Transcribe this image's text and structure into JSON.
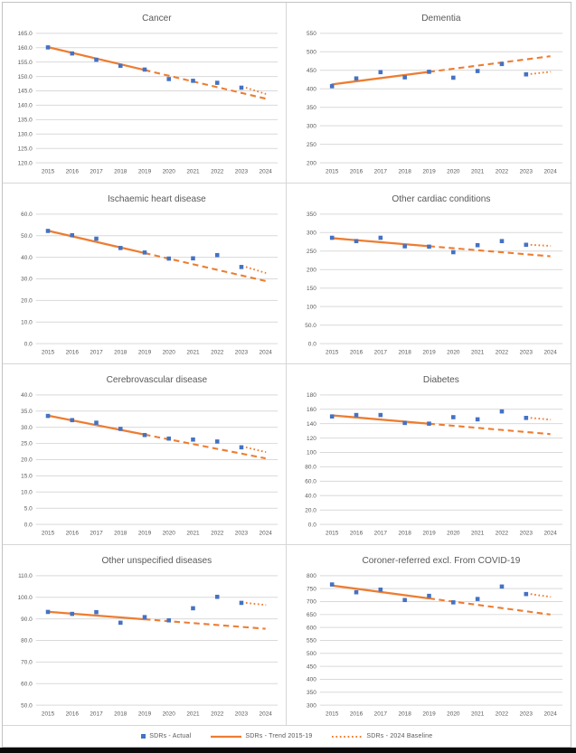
{
  "window": {
    "description": "Excel-style report sheet with eight small-multiple mortality charts (SDRs by year) and a shared legend",
    "background": "#FFFFFF",
    "bottom_bar_color": "#0A0A0A"
  },
  "colors": {
    "series_blue": "#4472C4",
    "trend_orange": "#ED7D31",
    "gridline": "#D9D9D9",
    "axis_text": "#595959",
    "title_text": "#595959",
    "panel_divider": "#D6D6D6",
    "frame_border": "#C3C3C3"
  },
  "legend": {
    "items": [
      {
        "label": "SDRs - Actual",
        "marker": "square",
        "color": "#4472C4"
      },
      {
        "label": "SDRs - Trend 2015-19",
        "marker": "solid-line",
        "color": "#ED7D31"
      },
      {
        "label": "SDRs - 2024 Baseline",
        "marker": "dotted-line",
        "color": "#ED7D31"
      }
    ]
  },
  "chart_data": [
    {
      "id": "cancer",
      "type": "scatter",
      "title": "Cancer",
      "categories": [
        "2015",
        "2016",
        "2017",
        "2018",
        "2019",
        "2020",
        "2021",
        "2022",
        "2023",
        "2024"
      ],
      "series": [
        {
          "name": "SDRs - Actual",
          "values": [
            160.1,
            158.0,
            155.8,
            153.7,
            152.4,
            149.1,
            148.5,
            147.8,
            146.1
          ]
        }
      ],
      "trend": {
        "name": "SDRs - Trend 2015-19",
        "y_2015": 160.2,
        "y_2024": 142.3,
        "solid_until_year": "2019"
      },
      "baseline_2024": {
        "name": "SDRs - 2024 Baseline",
        "y_2023": 146.1,
        "y_2024": 143.9
      },
      "ylim": [
        120,
        165
      ],
      "yticks": [
        "165.0",
        "160.0",
        "155.0",
        "150.0",
        "145.0",
        "140.0",
        "135.0",
        "130.0",
        "125.0",
        "120.0"
      ],
      "grid": true,
      "legend_position": "none"
    },
    {
      "id": "dementia",
      "type": "scatter",
      "title": "Dementia",
      "categories": [
        "2015",
        "2016",
        "2017",
        "2018",
        "2019",
        "2020",
        "2021",
        "2022",
        "2023",
        "2024"
      ],
      "series": [
        {
          "name": "SDRs - Actual",
          "values": [
            407,
            428,
            445,
            431,
            446,
            430,
            448,
            467,
            439
          ]
        }
      ],
      "trend": {
        "name": "SDRs - Trend 2015-19",
        "y_2015": 412,
        "y_2024": 488,
        "solid_until_year": "2019"
      },
      "baseline_2024": {
        "name": "SDRs - 2024 Baseline",
        "y_2023": 440,
        "y_2024": 446
      },
      "ylim": [
        200,
        550
      ],
      "yticks": [
        "550",
        "500",
        "450",
        "400",
        "350",
        "300",
        "250",
        "200"
      ],
      "grid": true,
      "legend_position": "none"
    },
    {
      "id": "ischaemic-heart-disease",
      "type": "scatter",
      "title": "Ischaemic heart disease",
      "categories": [
        "2015",
        "2016",
        "2017",
        "2018",
        "2019",
        "2020",
        "2021",
        "2022",
        "2023",
        "2024"
      ],
      "series": [
        {
          "name": "SDRs - Actual",
          "values": [
            52.2,
            50.2,
            48.6,
            44.3,
            42.2,
            39.4,
            39.5,
            41.0,
            35.5
          ]
        }
      ],
      "trend": {
        "name": "SDRs - Trend 2015-19",
        "y_2015": 52.3,
        "y_2024": 29.0,
        "solid_until_year": "2019"
      },
      "baseline_2024": {
        "name": "SDRs - 2024 Baseline",
        "y_2023": 35.5,
        "y_2024": 32.7
      },
      "ylim": [
        0,
        60
      ],
      "yticks": [
        "60.0",
        "50.0",
        "40.0",
        "30.0",
        "20.0",
        "10.0",
        "0.0"
      ],
      "grid": true,
      "legend_position": "none"
    },
    {
      "id": "other-cardiac-conditions",
      "type": "scatter",
      "title": "Other cardiac conditions",
      "categories": [
        "2015",
        "2016",
        "2017",
        "2018",
        "2019",
        "2020",
        "2021",
        "2022",
        "2023",
        "2024"
      ],
      "series": [
        {
          "name": "SDRs - Actual",
          "values": [
            286,
            277,
            286,
            263,
            262,
            247,
            266,
            277,
            267
          ]
        }
      ],
      "trend": {
        "name": "SDRs - Trend 2015-19",
        "y_2015": 285,
        "y_2024": 236,
        "solid_until_year": "2019"
      },
      "baseline_2024": {
        "name": "SDRs - 2024 Baseline",
        "y_2023": 267,
        "y_2024": 264
      },
      "ylim": [
        0,
        350
      ],
      "yticks": [
        "350",
        "300",
        "250",
        "200",
        "150",
        "100",
        "50.0",
        "0.0"
      ],
      "grid": true,
      "legend_position": "none"
    },
    {
      "id": "cerebrovascular-disease",
      "type": "scatter",
      "title": "Cerebrovascular disease",
      "categories": [
        "2015",
        "2016",
        "2017",
        "2018",
        "2019",
        "2020",
        "2021",
        "2022",
        "2023",
        "2024"
      ],
      "series": [
        {
          "name": "SDRs - Actual",
          "values": [
            33.5,
            32.2,
            31.4,
            29.5,
            27.6,
            26.5,
            26.2,
            25.6,
            23.8
          ]
        }
      ],
      "trend": {
        "name": "SDRs - Trend 2015-19",
        "y_2015": 33.6,
        "y_2024": 20.4,
        "solid_until_year": "2019"
      },
      "baseline_2024": {
        "name": "SDRs - 2024 Baseline",
        "y_2023": 23.8,
        "y_2024": 22.3
      },
      "ylim": [
        0,
        40
      ],
      "yticks": [
        "40.0",
        "35.0",
        "30.0",
        "25.0",
        "20.0",
        "15.0",
        "10.0",
        "5.0",
        "0.0"
      ],
      "grid": true,
      "legend_position": "none"
    },
    {
      "id": "diabetes",
      "type": "scatter",
      "title": "Diabetes",
      "categories": [
        "2015",
        "2016",
        "2017",
        "2018",
        "2019",
        "2020",
        "2021",
        "2022",
        "2023",
        "2024"
      ],
      "series": [
        {
          "name": "SDRs - Actual",
          "values": [
            150,
            152,
            152,
            141,
            140,
            149,
            146,
            157,
            148
          ]
        }
      ],
      "trend": {
        "name": "SDRs - Trend 2015-19",
        "y_2015": 151.5,
        "y_2024": 125.5,
        "solid_until_year": "2019"
      },
      "baseline_2024": {
        "name": "SDRs - 2024 Baseline",
        "y_2023": 148,
        "y_2024": 145.5
      },
      "ylim": [
        0,
        180
      ],
      "yticks": [
        "180",
        "160",
        "140",
        "120",
        "100",
        "80.0",
        "60.0",
        "40.0",
        "20.0",
        "0.0"
      ],
      "grid": true,
      "legend_position": "none"
    },
    {
      "id": "other-unspecified-diseases",
      "type": "scatter",
      "title": "Other unspecified diseases",
      "categories": [
        "2015",
        "2016",
        "2017",
        "2018",
        "2019",
        "2020",
        "2021",
        "2022",
        "2023",
        "2024"
      ],
      "series": [
        {
          "name": "SDRs - Actual",
          "values": [
            93.2,
            92.3,
            93.1,
            88.2,
            90.8,
            89.3,
            94.9,
            100.2,
            97.4
          ]
        }
      ],
      "trend": {
        "name": "SDRs - Trend 2015-19",
        "y_2015": 93.3,
        "y_2024": 85.4,
        "solid_until_year": "2019"
      },
      "baseline_2024": {
        "name": "SDRs - 2024 Baseline",
        "y_2023": 97.4,
        "y_2024": 96.4
      },
      "ylim": [
        50,
        110
      ],
      "yticks": [
        "110.0",
        "100.0",
        "90.0",
        "80.0",
        "70.0",
        "60.0",
        "50.0"
      ],
      "grid": true,
      "legend_position": "none"
    },
    {
      "id": "coroner-referred-excl-from-covid-19",
      "type": "scatter",
      "title": "Coroner-referred excl. From COVID-19",
      "categories": [
        "2015",
        "2016",
        "2017",
        "2018",
        "2019",
        "2020",
        "2021",
        "2022",
        "2023",
        "2024"
      ],
      "series": [
        {
          "name": "SDRs - Actual",
          "values": [
            766,
            736,
            746,
            706,
            722,
            697,
            710,
            758,
            729
          ]
        }
      ],
      "trend": {
        "name": "SDRs - Trend 2015-19",
        "y_2015": 762,
        "y_2024": 650,
        "solid_until_year": "2019"
      },
      "baseline_2024": {
        "name": "SDRs - 2024 Baseline",
        "y_2023": 729,
        "y_2024": 718
      },
      "ylim": [
        300,
        800
      ],
      "yticks": [
        "800",
        "750",
        "700",
        "650",
        "600",
        "550",
        "500",
        "450",
        "400",
        "350",
        "300"
      ],
      "grid": true,
      "legend_position": "none"
    }
  ]
}
